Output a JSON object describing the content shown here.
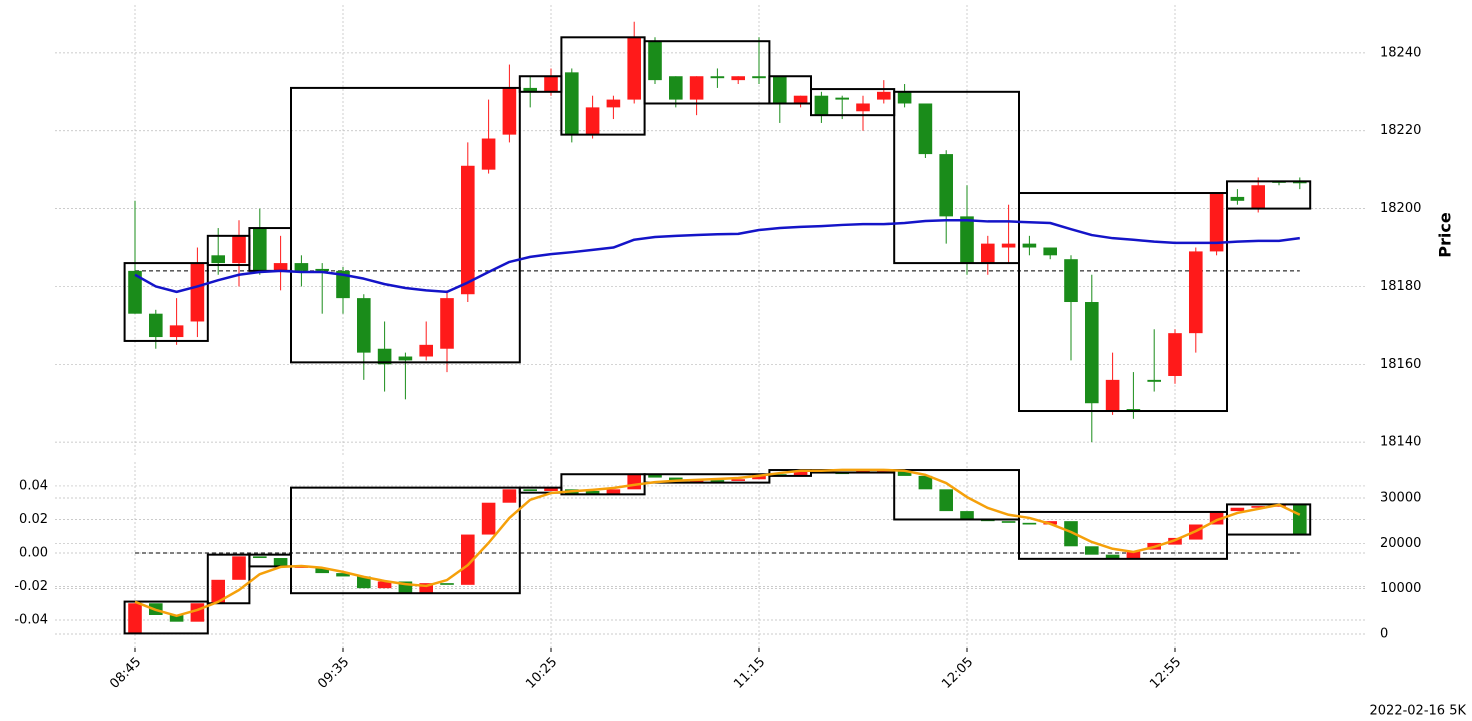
{
  "footer": "2022-02-16 5K",
  "chart_data": [
    {
      "type": "candlestick",
      "ylabel": "Price",
      "y_axis": "right",
      "grid": true,
      "ylim": [
        18136.7,
        18252.3
      ],
      "yticks": [
        18140,
        18160,
        18180,
        18200,
        18220,
        18240
      ],
      "up_color": "#ff1a1a",
      "down_color": "#1a8c1a",
      "open": [
        18184,
        18173,
        18167,
        18171,
        18188,
        18186,
        18195,
        18184,
        18186,
        18184.5,
        18184,
        18177,
        18164,
        18162,
        18162,
        18164,
        18178,
        18210,
        18219,
        18231,
        18230,
        18235,
        18219,
        18226,
        18228,
        18243,
        18234,
        18228,
        18234,
        18233,
        18234,
        18234,
        18227,
        18229,
        18228.5,
        18225,
        18228,
        18230,
        18227,
        18214,
        18198,
        18186,
        18190,
        18191,
        18190,
        18187,
        18176,
        18148,
        18148.5,
        18156,
        18157,
        18168,
        18189,
        18203,
        18200,
        18207,
        18207
      ],
      "high": [
        18202,
        18174,
        18177,
        18190,
        18195,
        18197,
        18200,
        18193,
        18188,
        18186,
        18185,
        18178,
        18171,
        18163,
        18171,
        18179,
        18217,
        18228,
        18237,
        18234,
        18236,
        18236,
        18229,
        18229,
        18248,
        18244,
        18234,
        18234,
        18236,
        18234,
        18244,
        18234,
        18229,
        18230,
        18229,
        18229,
        18233,
        18232,
        18227,
        18215,
        18206,
        18193,
        18201,
        18193,
        18190,
        18188,
        18183,
        18163,
        18158,
        18169,
        18169,
        18190,
        18204,
        18205,
        18208,
        18207,
        18208
      ],
      "low": [
        18173,
        18164,
        18165,
        18167,
        18183,
        18180,
        18183,
        18179,
        18180,
        18173,
        18173,
        18156,
        18153,
        18151,
        18161,
        18158,
        18176,
        18209,
        18217,
        18226,
        18229,
        18217,
        18218,
        18223,
        18227,
        18232,
        18226,
        18224,
        18231,
        18232,
        18232,
        18222,
        18226,
        18222,
        18223,
        18220,
        18227,
        18226,
        18213,
        18191,
        18183,
        18183,
        18186,
        18188,
        18187,
        18161,
        18140,
        18147,
        18146,
        18153,
        18155,
        18163,
        18188,
        18201,
        18199,
        18206,
        18205
      ],
      "close": [
        18173,
        18167,
        18170,
        18186,
        18186,
        18193,
        18184,
        18186,
        18184,
        18184,
        18177,
        18163,
        18160,
        18161,
        18165,
        18177,
        18211,
        18218,
        18231,
        18230,
        18234,
        18219,
        18226,
        18228,
        18244,
        18233,
        18228,
        18234,
        18233.5,
        18234,
        18233.5,
        18227,
        18229,
        18224,
        18228,
        18227,
        18230,
        18227,
        18214,
        18198,
        18186,
        18191,
        18191,
        18190,
        18188,
        18176,
        18150,
        18156,
        18148,
        18155.5,
        18168,
        18189,
        18204,
        18202,
        18206,
        18206.8,
        18206.5
      ],
      "line": {
        "color": "#1414c8",
        "values": [
          18183,
          18180,
          18178.6,
          18180,
          18181.6,
          18183,
          18183.7,
          18184,
          18183.7,
          18183.7,
          18183,
          18182,
          18180.6,
          18179.6,
          18179,
          18178.6,
          18181,
          18183.7,
          18186.3,
          18187.6,
          18188.3,
          18188.8,
          18189.4,
          18190,
          18192,
          18192.7,
          18193,
          18193.2,
          18193.4,
          18193.5,
          18194.5,
          18195,
          18195.3,
          18195.5,
          18195.8,
          18196,
          18196,
          18196.3,
          18196.8,
          18197,
          18197,
          18196.7,
          18196.7,
          18196.5,
          18196.3,
          18194.7,
          18193.2,
          18192.4,
          18192,
          18191.5,
          18191.2,
          18191.2,
          18191.2,
          18191.5,
          18191.7,
          18191.7,
          18192.4
        ]
      },
      "hline": 18184,
      "boxes": [
        {
          "start": 0,
          "end": 3,
          "high": 18186,
          "low": 18166
        },
        {
          "start": 4,
          "end": 5,
          "high": 18193,
          "low": 18185.5
        },
        {
          "start": 6,
          "end": 7,
          "high": 18195,
          "low": 18184
        },
        {
          "start": 8,
          "end": 18,
          "high": 18231,
          "low": 18160.5
        },
        {
          "start": 19,
          "end": 20,
          "high": 18234,
          "low": 18230
        },
        {
          "start": 21,
          "end": 24,
          "high": 18244,
          "low": 18219
        },
        {
          "start": 25,
          "end": 30,
          "high": 18243,
          "low": 18227
        },
        {
          "start": 31,
          "end": 32,
          "high": 18234,
          "low": 18227
        },
        {
          "start": 33,
          "end": 36,
          "high": 18230.7,
          "low": 18224
        },
        {
          "start": 37,
          "end": 42,
          "high": 18230,
          "low": 18186
        },
        {
          "start": 43,
          "end": 52,
          "high": 18204,
          "low": 18148
        },
        {
          "start": 53,
          "end": 56,
          "high": 18207,
          "low": 18200
        }
      ]
    },
    {
      "type": "candlestick",
      "grid": true,
      "ylim": [
        -0.0567,
        0.0543
      ],
      "yticks": [
        -0.04,
        -0.02,
        {
          "value": 0,
          "label": "0.00"
        },
        0.02,
        0.04
      ],
      "y2lim": [
        -3090,
        37940
      ],
      "y2ticks": [
        0,
        10000,
        20000,
        30000
      ],
      "up_color": "#ff1a1a",
      "down_color": "#1a8c1a",
      "open": [
        -0.048,
        -0.03,
        -0.037,
        -0.041,
        -0.03,
        -0.016,
        -0.002,
        -0.003,
        -0.0085,
        -0.009,
        -0.012,
        -0.014,
        -0.021,
        -0.017,
        -0.024,
        -0.018,
        -0.019,
        0.011,
        0.03,
        0.038,
        0.037,
        0.038,
        0.037,
        0.035,
        0.038,
        0.047,
        0.045,
        0.042,
        0.0435,
        0.043,
        0.044,
        0.047,
        0.046,
        0.049,
        0.048,
        0.0475,
        0.049,
        0.049,
        0.046,
        0.038,
        0.025,
        0.02,
        0.019,
        0.018,
        0.017,
        0.019,
        0.004,
        -0.001,
        -0.003,
        0.002,
        0.005,
        0.008,
        0.017,
        0.025,
        0.027,
        0.028,
        0.029
      ],
      "close": [
        -0.03,
        -0.037,
        -0.041,
        -0.03,
        -0.016,
        -0.002,
        -0.003,
        -0.008,
        -0.008,
        -0.012,
        -0.014,
        -0.021,
        -0.017,
        -0.024,
        -0.018,
        -0.019,
        0.011,
        0.03,
        0.038,
        0.037,
        0.039,
        0.035,
        0.035,
        0.038,
        0.047,
        0.045,
        0.043,
        0.0435,
        0.042,
        0.044,
        0.047,
        0.046,
        0.049,
        0.048,
        0.0475,
        0.049,
        0.0495,
        0.046,
        0.038,
        0.025,
        0.02,
        0.019,
        0.018,
        0.017,
        0.019,
        0.004,
        -0.001,
        -0.003,
        0.001,
        0.006,
        0.009,
        0.017,
        0.025,
        0.027,
        0.028,
        0.0285,
        0.011
      ],
      "line": {
        "color": "#f5a00a",
        "axis": "y2",
        "values": [
          7100,
          5300,
          4000,
          5300,
          7100,
          9700,
          13200,
          14800,
          15000,
          14600,
          13700,
          12600,
          11700,
          11000,
          10600,
          11900,
          15200,
          20100,
          25600,
          29600,
          31100,
          31500,
          31800,
          32200,
          32900,
          33500,
          33800,
          34000,
          34200,
          34400,
          34900,
          35500,
          36000,
          36000,
          36200,
          36200,
          36200,
          36000,
          35100,
          33300,
          30200,
          27800,
          26300,
          25600,
          24300,
          22500,
          20300,
          18800,
          18100,
          19200,
          20700,
          22700,
          25100,
          26700,
          27600,
          28500,
          26300
        ]
      },
      "hline": 0,
      "boxes": [
        {
          "start": 0,
          "end": 3,
          "high": -0.029,
          "low": -0.048
        },
        {
          "start": 4,
          "end": 5,
          "high": -0.001,
          "low": -0.03
        },
        {
          "start": 6,
          "end": 7,
          "high": -0.001,
          "low": -0.008
        },
        {
          "start": 8,
          "end": 18,
          "high": 0.039,
          "low": -0.024
        },
        {
          "start": 19,
          "end": 20,
          "high": 0.039,
          "low": 0.036
        },
        {
          "start": 21,
          "end": 24,
          "high": 0.047,
          "low": 0.035
        },
        {
          "start": 25,
          "end": 30,
          "high": 0.047,
          "low": 0.042
        },
        {
          "start": 31,
          "end": 32,
          "high": 0.0495,
          "low": 0.046
        },
        {
          "start": 33,
          "end": 36,
          "high": 0.0495,
          "low": 0.048
        },
        {
          "start": 37,
          "end": 42,
          "high": 0.0495,
          "low": 0.02
        },
        {
          "start": 43,
          "end": 52,
          "high": 0.0245,
          "low": -0.0035
        },
        {
          "start": 53,
          "end": 56,
          "high": 0.029,
          "low": 0.011
        }
      ],
      "categories": [
        "08:45",
        null,
        null,
        null,
        null,
        null,
        null,
        null,
        null,
        null,
        "09:35",
        null,
        null,
        null,
        null,
        null,
        null,
        null,
        null,
        null,
        "10:25",
        null,
        null,
        null,
        null,
        null,
        null,
        null,
        null,
        null,
        "11:15",
        null,
        null,
        null,
        null,
        null,
        null,
        null,
        null,
        null,
        "12:05",
        null,
        null,
        null,
        null,
        null,
        null,
        null,
        null,
        null,
        "12:55",
        null,
        null,
        null,
        null,
        null,
        null
      ]
    }
  ]
}
